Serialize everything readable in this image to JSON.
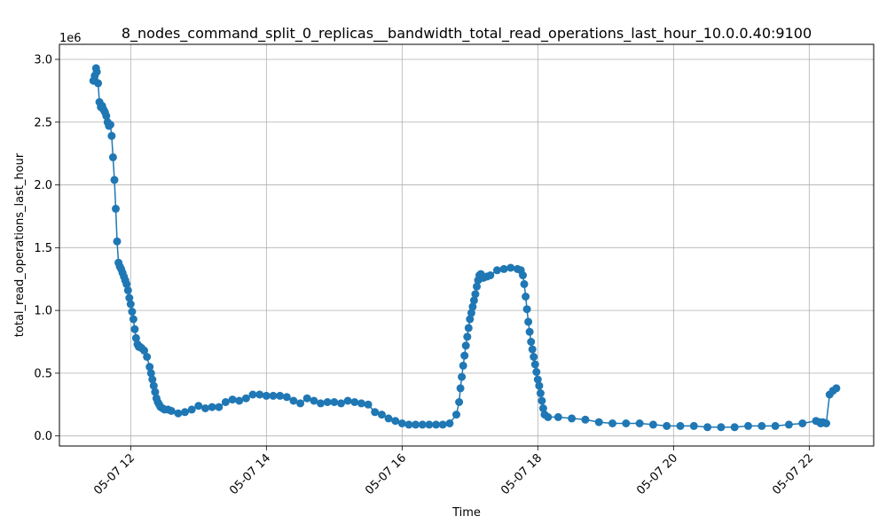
{
  "chart_data": {
    "type": "line",
    "title": "8_nodes_command_split_0_replicas__bandwidth_total_read_operations_last_hour_10.0.0.40:9100",
    "xlabel": "Time",
    "ylabel": "total_read_operations_last_hour",
    "y_multiplier_label": "1e6",
    "x_tick_labels": [
      "05-07 12",
      "05-07 14",
      "05-07 16",
      "05-07 18",
      "05-07 20",
      "05-07 22"
    ],
    "x_ticks_hours": [
      12,
      14,
      16,
      18,
      20,
      22
    ],
    "y_tick_labels": [
      "0.0",
      "0.5",
      "1.0",
      "1.5",
      "2.0",
      "2.5",
      "3.0"
    ],
    "y_ticks": [
      0.0,
      0.5,
      1.0,
      1.5,
      2.0,
      2.5,
      3.0
    ],
    "xlim_hours": [
      10.95,
      22.95
    ],
    "ylim": [
      -0.08,
      3.12
    ],
    "grid": true,
    "marker": "circle",
    "series_color": "#1f77b4",
    "series": [
      {
        "time_hours": [
          11.45,
          11.47,
          11.49,
          11.5,
          11.52,
          11.54,
          11.56,
          11.58,
          11.6,
          11.62,
          11.64,
          11.66,
          11.68,
          11.7,
          11.72,
          11.74,
          11.76,
          11.78,
          11.8,
          11.82,
          11.84,
          11.86,
          11.88,
          11.9,
          11.92,
          11.94,
          11.96,
          11.98,
          12.0,
          12.02,
          12.04,
          12.06,
          12.08,
          12.1,
          12.12,
          12.14,
          12.16,
          12.2,
          12.24,
          12.28,
          12.3,
          12.32,
          12.34,
          12.36,
          12.38,
          12.4,
          12.42,
          12.44,
          12.47,
          12.5,
          12.55,
          12.6,
          12.7,
          12.8,
          12.9,
          13.0,
          13.1,
          13.2,
          13.3,
          13.4,
          13.5,
          13.6,
          13.7,
          13.8,
          13.9,
          14.0,
          14.1,
          14.2,
          14.3,
          14.4,
          14.5,
          14.6,
          14.7,
          14.8,
          14.9,
          15.0,
          15.1,
          15.2,
          15.3,
          15.4,
          15.5,
          15.6,
          15.7,
          15.8,
          15.9,
          16.0,
          16.1,
          16.2,
          16.3,
          16.4,
          16.5,
          16.6,
          16.7,
          16.8,
          16.84,
          16.86,
          16.88,
          16.9,
          16.92,
          16.94,
          16.96,
          16.98,
          17.0,
          17.02,
          17.04,
          17.06,
          17.08,
          17.1,
          17.12,
          17.14,
          17.16,
          17.18,
          17.2,
          17.25,
          17.3,
          17.4,
          17.5,
          17.6,
          17.7,
          17.75,
          17.78,
          17.8,
          17.82,
          17.84,
          17.86,
          17.88,
          17.9,
          17.92,
          17.94,
          17.96,
          17.98,
          18.0,
          18.02,
          18.04,
          18.06,
          18.08,
          18.1,
          18.15,
          18.3,
          18.5,
          18.7,
          18.9,
          19.1,
          19.3,
          19.5,
          19.7,
          19.9,
          20.1,
          20.3,
          20.5,
          20.7,
          20.9,
          21.1,
          21.3,
          21.5,
          21.7,
          21.9,
          22.1,
          22.15,
          22.17,
          22.2,
          22.25,
          22.3,
          22.35,
          22.4
        ],
        "values": [
          2.83,
          2.87,
          2.93,
          2.9,
          2.81,
          2.66,
          2.62,
          2.63,
          2.6,
          2.58,
          2.55,
          2.5,
          2.47,
          2.48,
          2.39,
          2.22,
          2.04,
          1.81,
          1.55,
          1.38,
          1.35,
          1.33,
          1.3,
          1.27,
          1.24,
          1.21,
          1.16,
          1.1,
          1.05,
          0.99,
          0.93,
          0.85,
          0.78,
          0.73,
          0.71,
          0.71,
          0.7,
          0.68,
          0.63,
          0.55,
          0.5,
          0.45,
          0.4,
          0.35,
          0.3,
          0.27,
          0.25,
          0.23,
          0.22,
          0.21,
          0.21,
          0.2,
          0.18,
          0.19,
          0.21,
          0.24,
          0.22,
          0.23,
          0.23,
          0.27,
          0.29,
          0.28,
          0.3,
          0.33,
          0.33,
          0.32,
          0.32,
          0.32,
          0.31,
          0.28,
          0.26,
          0.3,
          0.28,
          0.26,
          0.27,
          0.27,
          0.26,
          0.28,
          0.27,
          0.26,
          0.25,
          0.19,
          0.17,
          0.14,
          0.12,
          0.1,
          0.09,
          0.09,
          0.09,
          0.09,
          0.09,
          0.09,
          0.1,
          0.17,
          0.27,
          0.38,
          0.47,
          0.56,
          0.64,
          0.72,
          0.79,
          0.86,
          0.93,
          0.98,
          1.03,
          1.08,
          1.13,
          1.19,
          1.24,
          1.28,
          1.29,
          1.26,
          1.26,
          1.27,
          1.28,
          1.32,
          1.33,
          1.34,
          1.33,
          1.32,
          1.28,
          1.21,
          1.11,
          1.01,
          0.91,
          0.83,
          0.75,
          0.69,
          0.63,
          0.57,
          0.51,
          0.45,
          0.4,
          0.34,
          0.28,
          0.22,
          0.17,
          0.15,
          0.15,
          0.14,
          0.13,
          0.11,
          0.1,
          0.1,
          0.1,
          0.09,
          0.08,
          0.08,
          0.08,
          0.07,
          0.07,
          0.07,
          0.08,
          0.08,
          0.08,
          0.09,
          0.1,
          0.12,
          0.11,
          0.1,
          0.11,
          0.1,
          0.33,
          0.36,
          0.38,
          0.39,
          0.39,
          0.39,
          0.38
        ]
      }
    ]
  }
}
